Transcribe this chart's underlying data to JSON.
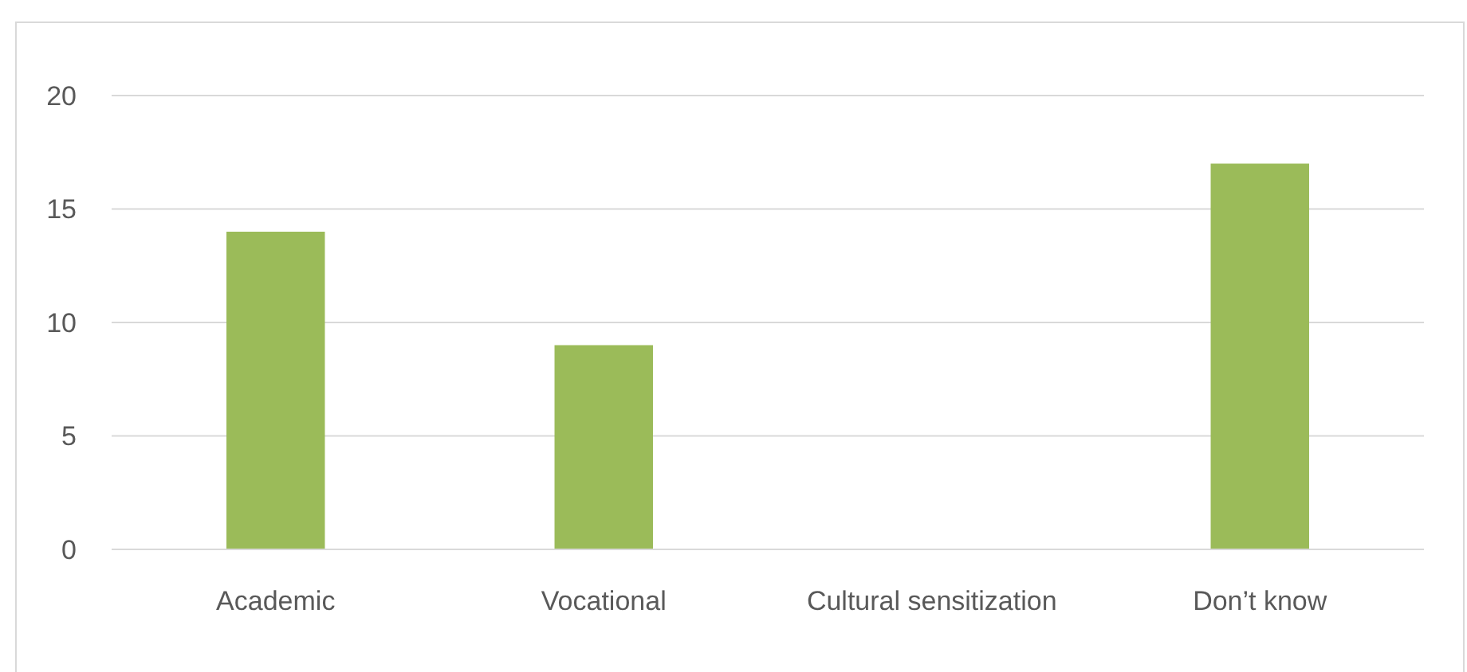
{
  "chart_data": {
    "type": "bar",
    "categories": [
      "Academic",
      "Vocational",
      "Cultural sensitization",
      "Don’t know"
    ],
    "values": [
      14,
      9,
      0,
      17
    ],
    "color": "#9bbb59",
    "ylim": [
      0,
      20
    ],
    "yticks": [
      0,
      5,
      10,
      15,
      20
    ],
    "grid": "y"
  }
}
